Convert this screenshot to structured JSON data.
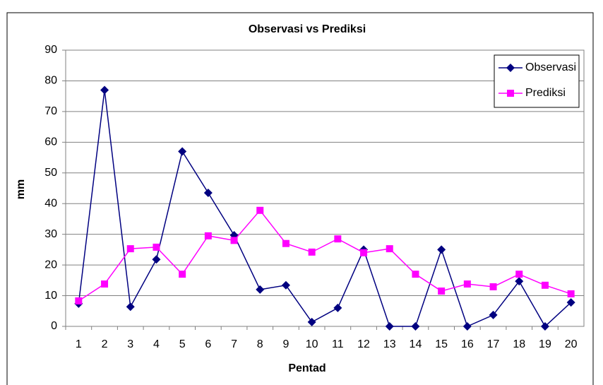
{
  "chart_data": {
    "type": "line",
    "title": "Observasi vs Prediksi",
    "x_label": "Pentad",
    "y_label": "mm",
    "categories": [
      "1",
      "2",
      "3",
      "4",
      "5",
      "6",
      "7",
      "8",
      "9",
      "10",
      "11",
      "12",
      "13",
      "14",
      "15",
      "16",
      "17",
      "18",
      "19",
      "20"
    ],
    "series": [
      {
        "name": "Observasi",
        "color": "#000080",
        "marker": "diamond",
        "values": [
          7.4,
          77,
          6.4,
          21.8,
          57,
          43.5,
          29.7,
          12,
          13.4,
          1.4,
          6,
          25,
          0,
          0,
          25,
          0,
          3.7,
          14.7,
          0,
          7.8
        ]
      },
      {
        "name": "Prediksi",
        "color": "#ff00ff",
        "marker": "square",
        "values": [
          8.3,
          13.8,
          25.3,
          25.8,
          17,
          29.5,
          28,
          37.8,
          27,
          24.2,
          28.5,
          24,
          25.3,
          17,
          11.5,
          13.8,
          12.9,
          17,
          13.4,
          10.6
        ]
      }
    ],
    "ylim": [
      0,
      90
    ],
    "yticks": [
      0,
      10,
      20,
      30,
      40,
      50,
      60,
      70,
      80,
      90
    ],
    "grid": true,
    "legend": "top-right"
  }
}
